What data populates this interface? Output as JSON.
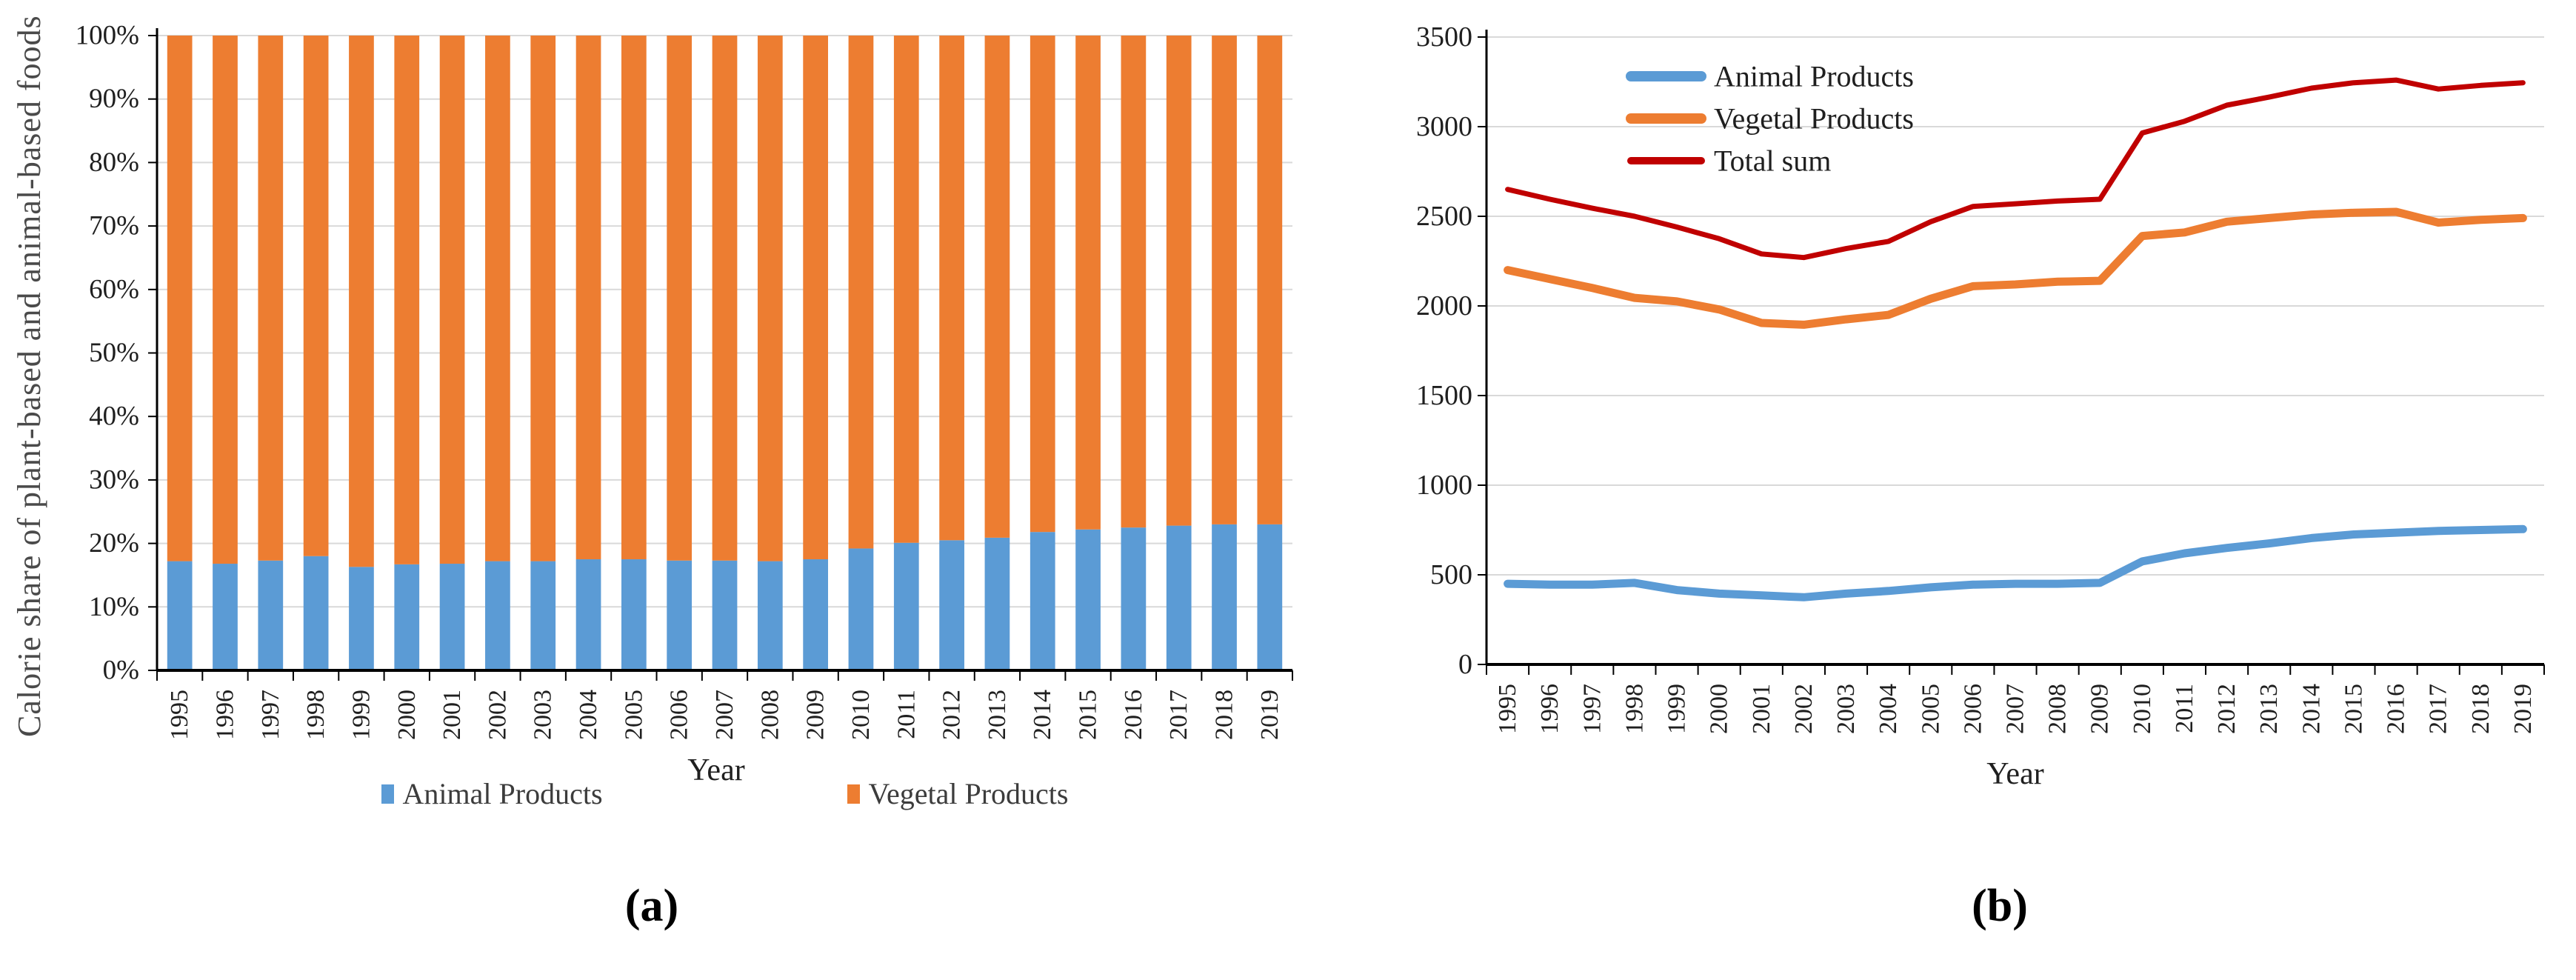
{
  "figure": {
    "captions": {
      "a": "(a)",
      "b": "(b)"
    }
  },
  "colors": {
    "animal_blue": "#5B9BD5",
    "vegetal_orange": "#ED7D31",
    "total_red": "#C00000",
    "gridline_gray": "#D9D9D9",
    "axis_black": "#000000"
  },
  "chart_data": [
    {
      "id": "a",
      "type": "bar",
      "stacked": "percent",
      "title": "",
      "ylabel": "Calorie share of plant-based and animal-based foods",
      "xlabel": "Year",
      "legend_position": "bottom",
      "grid": true,
      "ylim": [
        0,
        100
      ],
      "categories": [
        "1995",
        "1996",
        "1997",
        "1998",
        "1999",
        "2000",
        "2001",
        "2002",
        "2003",
        "2004",
        "2005",
        "2006",
        "2007",
        "2008",
        "2009",
        "2010",
        "2011",
        "2012",
        "2013",
        "2014",
        "2015",
        "2016",
        "2017",
        "2018",
        "2019"
      ],
      "y_ticks": [
        {
          "v": 0,
          "label": "0%"
        },
        {
          "v": 10,
          "label": "10%"
        },
        {
          "v": 20,
          "label": "20%"
        },
        {
          "v": 30,
          "label": "30%"
        },
        {
          "v": 40,
          "label": "40%"
        },
        {
          "v": 50,
          "label": "50%"
        },
        {
          "v": 60,
          "label": "60%"
        },
        {
          "v": 70,
          "label": "70%"
        },
        {
          "v": 80,
          "label": "80%"
        },
        {
          "v": 90,
          "label": "90%"
        },
        {
          "v": 100,
          "label": "100%"
        }
      ],
      "series": [
        {
          "name": "Animal Products",
          "color": "#5B9BD5",
          "values": [
            17.2,
            16.8,
            17.3,
            18.0,
            16.3,
            16.7,
            16.8,
            17.2,
            17.2,
            17.5,
            17.5,
            17.3,
            17.3,
            17.2,
            17.5,
            19.2,
            20.1,
            20.5,
            20.9,
            21.8,
            22.2,
            22.5,
            22.8,
            23.0,
            23.0
          ]
        },
        {
          "name": "Vegetal Products",
          "color": "#ED7D31",
          "values": [
            82.8,
            83.2,
            82.7,
            82.0,
            83.7,
            83.3,
            83.2,
            82.8,
            82.8,
            82.5,
            82.5,
            82.7,
            82.7,
            82.8,
            82.5,
            80.8,
            79.9,
            79.5,
            79.1,
            78.2,
            77.8,
            77.5,
            77.2,
            77.0,
            77.0
          ]
        }
      ]
    },
    {
      "id": "b",
      "type": "line",
      "title": "",
      "ylabel": "",
      "xlabel": "Year",
      "legend_position": "top-left",
      "grid": true,
      "ylim": [
        0,
        3500
      ],
      "categories": [
        "1995",
        "1996",
        "1997",
        "1998",
        "1999",
        "2000",
        "2001",
        "2002",
        "2003",
        "2004",
        "2005",
        "2006",
        "2007",
        "2008",
        "2009",
        "2010",
        "2011",
        "2012",
        "2013",
        "2014",
        "2015",
        "2016",
        "2017",
        "2018",
        "2019"
      ],
      "y_ticks": [
        {
          "v": 0,
          "label": "0"
        },
        {
          "v": 500,
          "label": "500"
        },
        {
          "v": 1000,
          "label": "1000"
        },
        {
          "v": 1500,
          "label": "1500"
        },
        {
          "v": 2000,
          "label": "2000"
        },
        {
          "v": 2500,
          "label": "2500"
        },
        {
          "v": 3000,
          "label": "3000"
        },
        {
          "v": 3500,
          "label": "3500"
        }
      ],
      "series": [
        {
          "name": "Animal Products",
          "color": "#5B9BD5",
          "stroke_width": 11,
          "values": [
            450,
            445,
            445,
            455,
            415,
            395,
            385,
            375,
            395,
            410,
            430,
            445,
            450,
            450,
            455,
            575,
            620,
            650,
            675,
            705,
            725,
            735,
            745,
            750,
            755
          ]
        },
        {
          "name": "Vegetal Products",
          "color": "#ED7D31",
          "stroke_width": 11,
          "values": [
            2200,
            2150,
            2100,
            2045,
            2025,
            1980,
            1905,
            1895,
            1925,
            1950,
            2040,
            2110,
            2120,
            2135,
            2140,
            2390,
            2410,
            2470,
            2490,
            2510,
            2520,
            2525,
            2465,
            2480,
            2490
          ]
        },
        {
          "name": "Total sum",
          "color": "#C00000",
          "stroke_width": 7,
          "values": [
            2650,
            2595,
            2545,
            2500,
            2440,
            2375,
            2290,
            2270,
            2320,
            2360,
            2470,
            2555,
            2570,
            2585,
            2595,
            2965,
            3030,
            3120,
            3165,
            3215,
            3245,
            3260,
            3210,
            3230,
            3245
          ]
        }
      ]
    }
  ]
}
